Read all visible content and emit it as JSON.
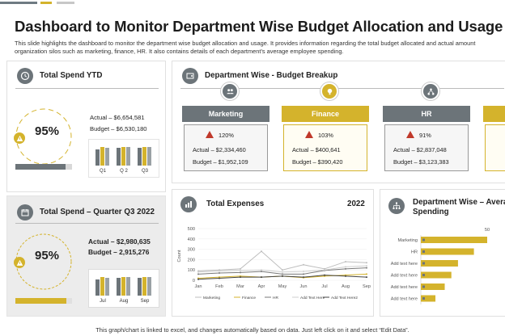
{
  "header": {
    "title": "Dashboard to Monitor Department Wise Budget Allocation and Usage",
    "subtitle_line1": "This slide highlights the dashboard to monitor the department wise budget allocation and usage. It provides information regarding the total budget allocated and actual amount",
    "subtitle_line2": "organization silos such as marketing, finance, HR. It also contains details of each department’s average employee spending."
  },
  "colors": {
    "accent": "#d4b32c",
    "slate": "#6c7479",
    "alert": "#c0392b"
  },
  "ytd": {
    "title": "Total Spend YTD",
    "percent": "95%",
    "actual": "Actual – $6,654,581",
    "budget": "Budget – $6,530,180",
    "progress": 0.88,
    "chart_data": {
      "type": "bar",
      "categories": [
        "Q1",
        "Q 2",
        "Q3"
      ],
      "series": [
        {
          "values": [
            14,
            15,
            15
          ]
        },
        {
          "values": [
            16,
            16,
            16
          ]
        },
        {
          "values": [
            15,
            16,
            16
          ]
        }
      ]
    }
  },
  "q3": {
    "title": "Total Spend – Quarter Q3 2022",
    "percent": "95%",
    "actual": "Actual – $2,980,635",
    "budget": "Budget – 2,915,276",
    "progress": 0.9,
    "chart_data": {
      "type": "bar",
      "categories": [
        "Jul",
        "Aug",
        "Sep"
      ],
      "series": [
        {
          "values": [
            14,
            15,
            15
          ]
        },
        {
          "values": [
            16,
            16,
            16
          ]
        },
        {
          "values": [
            15,
            16,
            16
          ]
        }
      ]
    }
  },
  "breakup": {
    "title": "Department Wise - Budget Breakup",
    "departments": [
      {
        "name": "Marketing",
        "pct": "120%",
        "actual": "Actual – $2,334,460",
        "budget": "Budget – $1,952,109",
        "icon": "people-icon",
        "style": "slate"
      },
      {
        "name": "Finance",
        "pct": "103%",
        "actual": "Actual – $400,641",
        "budget": "Budget – $390,420",
        "icon": "money-bulb-icon",
        "style": "yellow"
      },
      {
        "name": "HR",
        "pct": "91%",
        "actual": "Actual – $2,837,048",
        "budget": "Budget – $3,123,383",
        "icon": "hr-network-icon",
        "style": "slate"
      }
    ]
  },
  "expenses": {
    "title": "Total Expenses",
    "year": "2022",
    "chart_data": {
      "type": "line",
      "x": [
        "Jan",
        "Feb",
        "Mar",
        "Apr",
        "May",
        "Jun",
        "Jul",
        "Aug",
        "Sep"
      ],
      "ylabel": "Count",
      "ylim": [
        0,
        500
      ],
      "yticks": [
        0,
        100,
        200,
        300,
        400,
        500
      ],
      "series": [
        {
          "name": "Marketing",
          "color": "#bdbdbd",
          "values": [
            90,
            100,
            110,
            280,
            100,
            150,
            110,
            180,
            170
          ]
        },
        {
          "name": "Finance",
          "color": "#d4b32c",
          "values": [
            20,
            30,
            40,
            30,
            40,
            25,
            40,
            50,
            60
          ]
        },
        {
          "name": "HR",
          "color": "#7a7a7a",
          "values": [
            60,
            70,
            75,
            85,
            60,
            60,
            95,
            110,
            120
          ]
        },
        {
          "name": "Add Text Here",
          "color": "#cfcfcf",
          "values": [
            80,
            90,
            95,
            100,
            80,
            85,
            100,
            130,
            140
          ]
        },
        {
          "name": "Add Text Here2",
          "color": "#444444",
          "values": [
            10,
            20,
            30,
            30,
            40,
            30,
            50,
            40,
            30
          ]
        }
      ]
    }
  },
  "avg": {
    "title_line1": "Department Wise – Avera",
    "title_line2": "Spending",
    "chart_data": {
      "type": "bar",
      "categories": [
        "Marketing",
        "HR",
        "Add text here",
        "Add text here",
        "Add text here",
        "Add text here"
      ],
      "values": [
        50,
        40,
        28,
        23,
        18,
        11
      ],
      "xtick_label": "50"
    }
  },
  "footer": "This graph/chart is linked to excel, and changes automatically based on data. Just left click on it and select “Edit Data”."
}
